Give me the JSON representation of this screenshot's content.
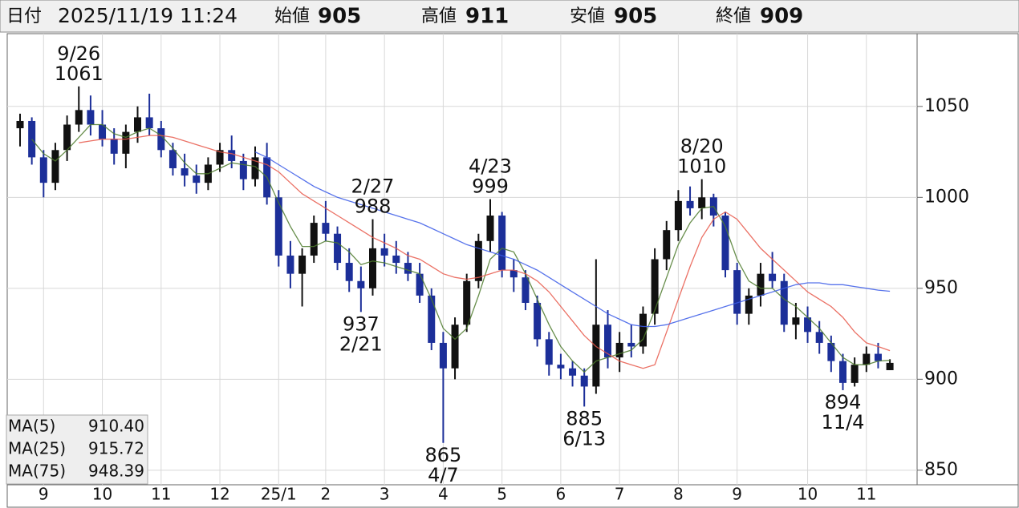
{
  "header": {
    "date_label": "日付",
    "datetime": "2025/11/19 11:24",
    "items": [
      {
        "label": "始値",
        "value": 905,
        "color": "#111111"
      },
      {
        "label": "高値",
        "value": 911,
        "color": "#e0382b"
      },
      {
        "label": "安値",
        "value": 905,
        "color": "#2e7a1f"
      },
      {
        "label": "終値",
        "value": 909,
        "color": "#111111"
      }
    ]
  },
  "chart_data": {
    "type": "candlestick",
    "up_color": "#111111",
    "down_color": "#1c2f99",
    "ylim": [
      842,
      1090
    ],
    "yticks": [
      850,
      900,
      950,
      1000,
      1050
    ],
    "grid": true,
    "categories": [
      null,
      null,
      "9",
      null,
      null,
      null,
      null,
      "10",
      null,
      null,
      null,
      null,
      "11",
      null,
      null,
      null,
      null,
      "12",
      null,
      null,
      null,
      null,
      "25/1",
      null,
      null,
      null,
      "2",
      null,
      null,
      null,
      null,
      "3",
      null,
      null,
      null,
      null,
      "4",
      null,
      null,
      null,
      null,
      "5",
      null,
      null,
      null,
      null,
      "6",
      null,
      null,
      null,
      null,
      "7",
      null,
      null,
      null,
      null,
      "8",
      null,
      null,
      null,
      null,
      "9",
      null,
      null,
      null,
      null,
      null,
      "10",
      null,
      null,
      null,
      null,
      "11",
      null,
      null
    ],
    "candles": [
      [
        1038,
        1046,
        1028,
        1042
      ],
      [
        1042,
        1044,
        1018,
        1022
      ],
      [
        1022,
        1026,
        1000,
        1008
      ],
      [
        1008,
        1030,
        1004,
        1026
      ],
      [
        1026,
        1045,
        1020,
        1040
      ],
      [
        1040,
        1061,
        1036,
        1048
      ],
      [
        1048,
        1056,
        1034,
        1040
      ],
      [
        1040,
        1048,
        1028,
        1032
      ],
      [
        1032,
        1038,
        1018,
        1024
      ],
      [
        1024,
        1040,
        1016,
        1036
      ],
      [
        1036,
        1050,
        1030,
        1044
      ],
      [
        1044,
        1057,
        1034,
        1038
      ],
      [
        1038,
        1042,
        1022,
        1026
      ],
      [
        1026,
        1030,
        1012,
        1016
      ],
      [
        1016,
        1024,
        1006,
        1012
      ],
      [
        1012,
        1018,
        1002,
        1008
      ],
      [
        1008,
        1022,
        1004,
        1018
      ],
      [
        1018,
        1030,
        1014,
        1026
      ],
      [
        1026,
        1034,
        1016,
        1020
      ],
      [
        1020,
        1024,
        1004,
        1010
      ],
      [
        1010,
        1028,
        1006,
        1022
      ],
      [
        1022,
        1030,
        996,
        1000
      ],
      [
        1000,
        1004,
        962,
        968
      ],
      [
        968,
        976,
        950,
        958
      ],
      [
        958,
        972,
        940,
        968
      ],
      [
        968,
        990,
        964,
        986
      ],
      [
        986,
        998,
        976,
        980
      ],
      [
        980,
        984,
        960,
        964
      ],
      [
        964,
        972,
        948,
        954
      ],
      [
        954,
        962,
        937,
        950
      ],
      [
        950,
        988,
        946,
        972
      ],
      [
        972,
        980,
        962,
        968
      ],
      [
        968,
        976,
        958,
        964
      ],
      [
        964,
        970,
        954,
        958
      ],
      [
        958,
        964,
        942,
        946
      ],
      [
        946,
        950,
        916,
        920
      ],
      [
        920,
        926,
        865,
        906
      ],
      [
        906,
        934,
        900,
        930
      ],
      [
        930,
        958,
        926,
        954
      ],
      [
        954,
        980,
        950,
        976
      ],
      [
        976,
        999,
        970,
        990
      ],
      [
        990,
        992,
        956,
        960
      ],
      [
        960,
        966,
        948,
        956
      ],
      [
        956,
        960,
        938,
        942
      ],
      [
        942,
        946,
        918,
        922
      ],
      [
        922,
        926,
        902,
        908
      ],
      [
        908,
        914,
        900,
        906
      ],
      [
        906,
        910,
        896,
        902
      ],
      [
        902,
        906,
        885,
        896
      ],
      [
        896,
        966,
        892,
        930
      ],
      [
        930,
        938,
        906,
        912
      ],
      [
        912,
        926,
        904,
        920
      ],
      [
        920,
        930,
        912,
        918
      ],
      [
        918,
        940,
        914,
        936
      ],
      [
        936,
        972,
        930,
        966
      ],
      [
        966,
        987,
        960,
        982
      ],
      [
        982,
        1004,
        976,
        998
      ],
      [
        998,
        1006,
        990,
        994
      ],
      [
        994,
        1010,
        988,
        1000
      ],
      [
        1000,
        1002,
        984,
        990
      ],
      [
        990,
        992,
        956,
        960
      ],
      [
        960,
        964,
        930,
        936
      ],
      [
        936,
        950,
        930,
        946
      ],
      [
        946,
        964,
        940,
        958
      ],
      [
        958,
        970,
        950,
        954
      ],
      [
        954,
        958,
        926,
        930
      ],
      [
        930,
        942,
        922,
        934
      ],
      [
        934,
        940,
        920,
        926
      ],
      [
        926,
        932,
        914,
        920
      ],
      [
        920,
        924,
        904,
        910
      ],
      [
        910,
        914,
        894,
        898
      ],
      [
        898,
        912,
        896,
        908
      ],
      [
        908,
        918,
        904,
        914
      ],
      [
        914,
        920,
        906,
        910
      ],
      [
        905,
        911,
        905,
        909
      ]
    ],
    "series": [
      {
        "name": "MA(5)",
        "color": "#4c7a2c",
        "latest": 910.4,
        "latest_label": "910.40",
        "values": [
          null,
          1032,
          1024,
          1020,
          1026,
          1033,
          1040,
          1040,
          1035,
          1033,
          1036,
          1038,
          1034,
          1027,
          1019,
          1013,
          1013,
          1016,
          1019,
          1018,
          1017,
          1011,
          997,
          984,
          973,
          973,
          976,
          975,
          970,
          963,
          965,
          964,
          962,
          960,
          958,
          944,
          928,
          922,
          928,
          946,
          966,
          972,
          970,
          958,
          944,
          930,
          918,
          910,
          904,
          910,
          912,
          914,
          916,
          922,
          938,
          956,
          974,
          986,
          994,
          995,
          984,
          966,
          954,
          950,
          950,
          944,
          940,
          934,
          928,
          920,
          912,
          908,
          908,
          910,
          910.4
        ]
      },
      {
        "name": "MA(25)",
        "color": "#e8584a",
        "latest": 915.72,
        "latest_label": "915.72",
        "values": [
          null,
          null,
          null,
          null,
          null,
          1030,
          1031,
          1032,
          1032,
          1032,
          1033,
          1034,
          1034,
          1033,
          1031,
          1029,
          1027,
          1025,
          1024,
          1022,
          1020,
          1018,
          1014,
          1008,
          1002,
          998,
          994,
          990,
          986,
          982,
          978,
          975,
          972,
          968,
          966,
          962,
          958,
          956,
          955,
          956,
          958,
          960,
          960,
          958,
          954,
          948,
          940,
          932,
          924,
          918,
          914,
          910,
          908,
          906,
          908,
          926,
          944,
          962,
          978,
          988,
          992,
          988,
          980,
          972,
          966,
          960,
          954,
          948,
          944,
          940,
          934,
          926,
          920,
          918,
          915.72
        ]
      },
      {
        "name": "MA(75)",
        "color": "#3a5ae8",
        "latest": 948.39,
        "latest_label": "948.39",
        "values": [
          null,
          null,
          null,
          null,
          null,
          null,
          null,
          null,
          null,
          null,
          null,
          null,
          null,
          null,
          null,
          null,
          null,
          null,
          null,
          null,
          1025,
          1022,
          1018,
          1014,
          1010,
          1006,
          1003,
          1000,
          998,
          996,
          994,
          992,
          990,
          988,
          986,
          983,
          980,
          977,
          974,
          972,
          970,
          968,
          966,
          963,
          960,
          956,
          952,
          948,
          944,
          940,
          936,
          933,
          930,
          929,
          929,
          930,
          932,
          934,
          936,
          938,
          940,
          942,
          944,
          946,
          948,
          950,
          952,
          953,
          953,
          952,
          952,
          951,
          950,
          949,
          948.39
        ]
      }
    ],
    "annotations": [
      {
        "date": "9/26",
        "value": 1061,
        "position": "above"
      },
      {
        "date": "2/27",
        "value": 988,
        "position": "above"
      },
      {
        "date": "2/21",
        "value": 937,
        "position": "below"
      },
      {
        "date": "4/23",
        "value": 999,
        "position": "above"
      },
      {
        "date": "4/7",
        "value": 865,
        "position": "below"
      },
      {
        "date": "6/13",
        "value": 885,
        "position": "below"
      },
      {
        "date": "8/20",
        "value": 1010,
        "position": "above"
      },
      {
        "date": "11/4",
        "value": 894,
        "position": "below"
      }
    ]
  }
}
